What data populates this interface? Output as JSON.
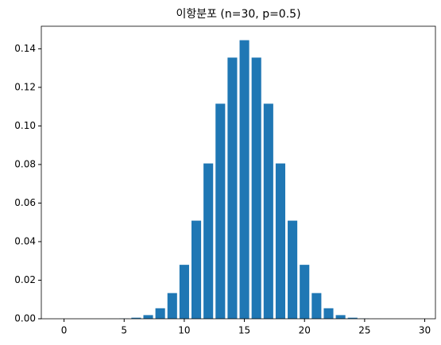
{
  "chart_data": {
    "type": "bar",
    "title": "이항분포 (n=30, p=0.5)",
    "x": [
      0,
      1,
      2,
      3,
      4,
      5,
      6,
      7,
      8,
      9,
      10,
      11,
      12,
      13,
      14,
      15,
      16,
      17,
      18,
      19,
      20,
      21,
      22,
      23,
      24,
      25,
      26,
      27,
      28,
      29
    ],
    "values": [
      9.3e-10,
      2.8e-08,
      4.05e-07,
      3.8e-06,
      2.55e-05,
      0.000133,
      0.000553,
      0.0019,
      0.00545,
      0.01332,
      0.02798,
      0.05088,
      0.08055,
      0.11153,
      0.13544,
      0.14446,
      0.13544,
      0.11153,
      0.08055,
      0.05088,
      0.02798,
      0.01332,
      0.00545,
      0.0019,
      0.000553,
      0.000133,
      2.55e-05,
      3.8e-06,
      4.05e-07,
      2.8e-08
    ],
    "color": "#1f77b4",
    "xlim": [
      -1.89,
      30.89
    ],
    "xticks": [
      0,
      5,
      10,
      15,
      20,
      25,
      30
    ],
    "ylim": [
      0,
      0.1517
    ],
    "yticks": [
      {
        "value": 0,
        "label": "0.00"
      },
      {
        "value": 0.02,
        "label": "0.02"
      },
      {
        "value": 0.04,
        "label": "0.04"
      },
      {
        "value": 0.06,
        "label": "0.06"
      },
      {
        "value": 0.08,
        "label": "0.08"
      },
      {
        "value": 0.1,
        "label": "0.10"
      },
      {
        "value": 0.12,
        "label": "0.12"
      },
      {
        "value": 0.14,
        "label": "0.14"
      }
    ]
  }
}
